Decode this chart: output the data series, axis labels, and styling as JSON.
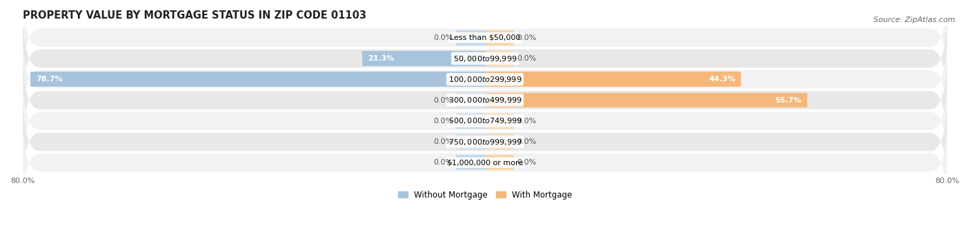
{
  "title": "PROPERTY VALUE BY MORTGAGE STATUS IN ZIP CODE 01103",
  "source": "Source: ZipAtlas.com",
  "categories": [
    "Less than $50,000",
    "$50,000 to $99,999",
    "$100,000 to $299,999",
    "$300,000 to $499,999",
    "$500,000 to $749,999",
    "$750,000 to $999,999",
    "$1,000,000 or more"
  ],
  "without_mortgage": [
    0.0,
    21.3,
    78.7,
    0.0,
    0.0,
    0.0,
    0.0
  ],
  "with_mortgage": [
    0.0,
    0.0,
    44.3,
    55.7,
    0.0,
    0.0,
    0.0
  ],
  "color_without": "#a8c4dc",
  "color_with": "#f5b87a",
  "color_without_stub": "#c5d9ea",
  "color_with_stub": "#f8d4a8",
  "bg_colors": [
    "#f2f2f2",
    "#e8e8e8"
  ],
  "xlim_left": -80,
  "xlim_right": 80,
  "xtick_left_label": "80.0%",
  "xtick_right_label": "80.0%",
  "bar_height": 0.72,
  "stub_size": 5.0,
  "label_fontsize": 8.0,
  "title_fontsize": 10.5,
  "source_fontsize": 8.0,
  "category_fontsize": 8.0,
  "legend_fontsize": 8.5
}
